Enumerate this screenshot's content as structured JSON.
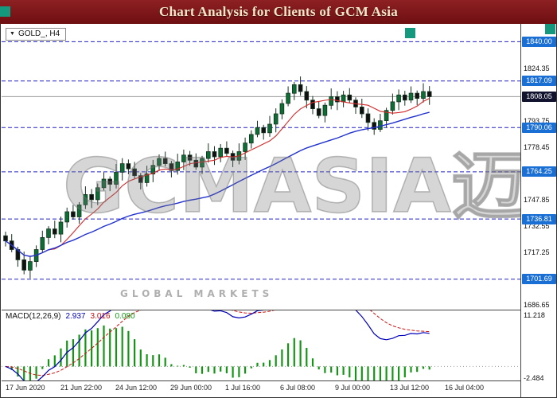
{
  "header": {
    "title": "Chart Analysis for Clients of GCM Asia",
    "bg_color": "#7a1316",
    "accent_color": "#15997e"
  },
  "symbol_label": {
    "icon": "▼",
    "text": "GOLD_, H4"
  },
  "watermark": {
    "text": "GCMASIA迈汇",
    "tagline": "GLOBAL MARKETS"
  },
  "macd_panel": {
    "label": "MACD(12,26,9)",
    "values": [
      "2.937",
      "3.016",
      "0.080"
    ]
  },
  "chart_data": {
    "type": "candlestick",
    "symbol": "GOLD_",
    "timeframe": "H4",
    "title": "Chart Analysis for Clients of GCM Asia",
    "price_domain": [
      1684,
      1849
    ],
    "y_ticks": [
      1839.65,
      1824.35,
      1809.05,
      1793.75,
      1778.45,
      1763.15,
      1747.85,
      1732.55,
      1717.25,
      1701.95,
      1686.65
    ],
    "levels": [
      1840.0,
      1817.09,
      1790.06,
      1764.25,
      1736.81,
      1701.69
    ],
    "level_color": "#2222cc",
    "current_price": 1808.05,
    "x_labels": [
      "17 Jun 2020",
      "21 Jun 22:00",
      "24 Jun 12:00",
      "29 Jun 00:00",
      "1 Jul 16:00",
      "6 Jul 08:00",
      "9 Jul 00:00",
      "13 Jul 12:00",
      "16 Jul 04:00"
    ],
    "open_first": 1727,
    "closes": [
      1724,
      1719,
      1713,
      1707,
      1712,
      1719,
      1726,
      1731,
      1728,
      1735,
      1741,
      1738,
      1745,
      1751,
      1748,
      1755,
      1760,
      1757,
      1764,
      1769,
      1766,
      1762,
      1758,
      1763,
      1768,
      1772,
      1769,
      1765,
      1770,
      1774,
      1771,
      1767,
      1772,
      1776,
      1773,
      1778,
      1775,
      1771,
      1776,
      1781,
      1786,
      1790,
      1787,
      1792,
      1798,
      1804,
      1810,
      1815,
      1811,
      1806,
      1801,
      1797,
      1803,
      1808,
      1805,
      1809,
      1806,
      1802,
      1798,
      1793,
      1789,
      1794,
      1800,
      1805,
      1809,
      1806,
      1810,
      1807,
      1811,
      1808.05
    ],
    "overlays": [
      {
        "name": "ma-fast",
        "type": "sma",
        "period": 8,
        "color": "#d42a2a"
      },
      {
        "name": "ma-slow",
        "type": "sma",
        "period": 34,
        "color": "#2031d0"
      }
    ],
    "macd": {
      "fast": 12,
      "slow": 26,
      "signal": 9,
      "current_macd": 2.937,
      "current_signal": 3.016,
      "current_hist": 0.08,
      "domain": [
        -3,
        12
      ],
      "ticks": [
        "11.218",
        "-2.484"
      ],
      "line_color": "#0000bb",
      "signal_color": "#cc1111",
      "hist_color": "#149614"
    }
  }
}
